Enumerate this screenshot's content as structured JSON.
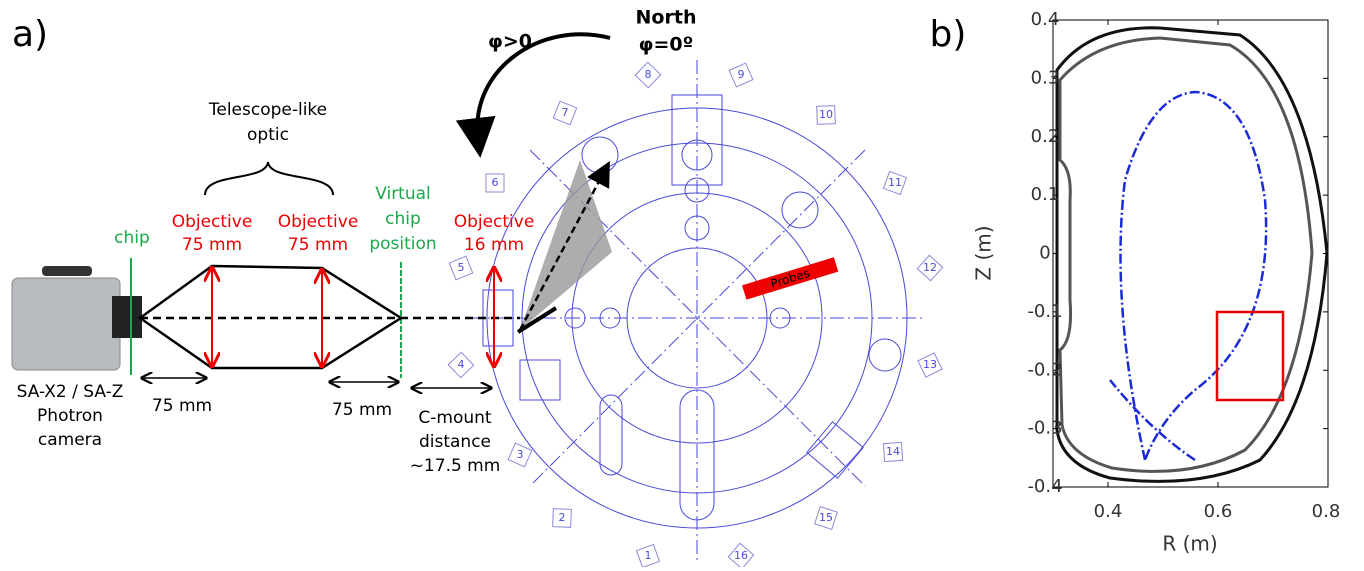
{
  "panel_a": {
    "label": "a)",
    "direction": {
      "phi_positive": "φ>0",
      "north": "North",
      "north_phi": "φ=0º"
    },
    "optic_title": [
      "Telescope-like",
      "optic"
    ],
    "chip": "chip",
    "objective_1": [
      "Objective",
      "75 mm"
    ],
    "objective_2": [
      "Objective",
      "75 mm"
    ],
    "virtual_chip": [
      "Virtual",
      "chip",
      "position"
    ],
    "objective_3": [
      "Objective",
      "16 mm"
    ],
    "probes": "Probes",
    "camera": [
      "SA-X2 / SA-Z",
      "Photron",
      "camera"
    ],
    "distance_1": "75 mm",
    "distance_2": "75 mm",
    "c_mount": [
      "C-mount",
      "distance",
      "~17.5 mm"
    ],
    "ports": [
      "1",
      "2",
      "3",
      "4",
      "5",
      "6",
      "7",
      "8",
      "9",
      "10",
      "11",
      "12",
      "13",
      "14",
      "15",
      "16"
    ]
  },
  "panel_b": {
    "label": "b)",
    "xlabel": "R (m)",
    "ylabel": "Z (m)",
    "xlim": [
      0.3,
      0.8
    ],
    "ylim": [
      -0.4,
      0.4
    ],
    "xticks": [
      0.4,
      0.6,
      0.8
    ],
    "yticks": [
      0.4,
      0.3,
      0.2,
      0.1,
      0,
      -0.1,
      -0.2,
      -0.3,
      -0.4
    ]
  }
}
